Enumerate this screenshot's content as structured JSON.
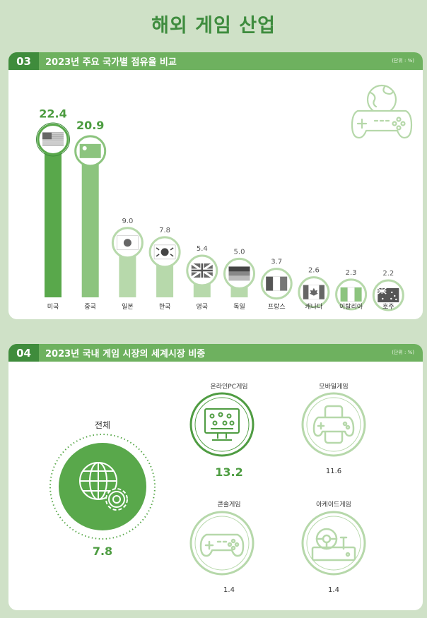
{
  "page_title": "해외 게임 산업",
  "section1": {
    "number": "03",
    "title": "2023년 주요 국가별 점유율 비교",
    "unit": "(단위 : %)"
  },
  "chart_data": {
    "type": "bar",
    "categories": [
      "미국",
      "중국",
      "일본",
      "한국",
      "영국",
      "독일",
      "프랑스",
      "캐나다",
      "이탈리아",
      "호주"
    ],
    "values": [
      22.4,
      20.9,
      9.0,
      7.8,
      5.4,
      5.0,
      3.7,
      2.6,
      2.3,
      2.2
    ],
    "value_labels": [
      "22.4",
      "20.9",
      "9.0",
      "7.8",
      "5.4",
      "5.0",
      "3.7",
      "2.6",
      "2.3",
      "2.2"
    ],
    "flag_icons": [
      "us-flag-icon",
      "cn-flag-icon",
      "jp-flag-icon",
      "kr-flag-icon",
      "uk-flag-icon",
      "de-flag-icon",
      "fr-flag-icon",
      "ca-flag-icon",
      "it-flag-icon",
      "au-flag-icon"
    ],
    "ylim": [
      0,
      24
    ],
    "colors": [
      "#59a84b",
      "#8cc47e",
      "#b7d9ab",
      "#b7d9ab",
      "#b7d9ab",
      "#b7d9ab",
      "#b7d9ab",
      "#b7d9ab",
      "#b7d9ab",
      "#b7d9ab"
    ],
    "xlabel": "",
    "ylabel": "",
    "grid": false
  },
  "section2": {
    "number": "04",
    "title": "2023년 국내 게임 시장의 세계시장 비중",
    "unit": "(단위 : %)",
    "total": {
      "label": "전체",
      "value": "7.8",
      "icon": "globe-gear-icon"
    },
    "items": [
      {
        "label": "온라인PC게임",
        "value": "13.2",
        "icon": "pc-monitor-icon",
        "highlight": true
      },
      {
        "label": "모바일게임",
        "value": "11.6",
        "icon": "mobile-gamepad-icon",
        "highlight": false
      },
      {
        "label": "콘솔게임",
        "value": "1.4",
        "icon": "console-controller-icon",
        "highlight": false
      },
      {
        "label": "아케이드게임",
        "value": "1.4",
        "icon": "arcade-wheel-icon",
        "highlight": false
      }
    ]
  }
}
